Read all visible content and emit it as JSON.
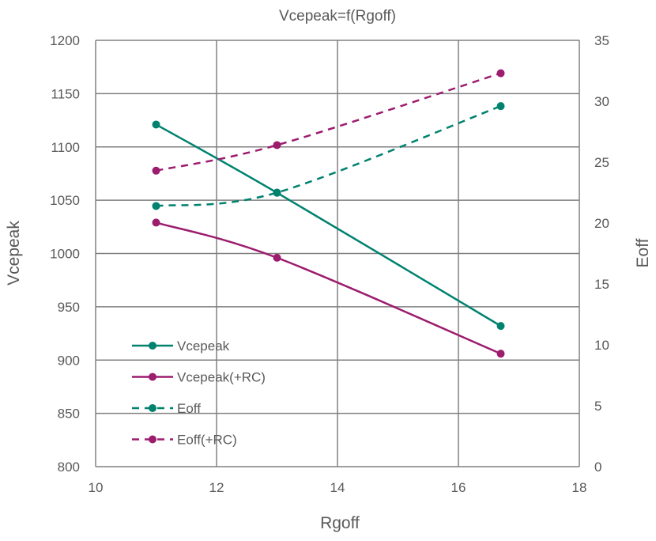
{
  "chart_data": {
    "type": "line",
    "title": "Vcepeak=f(Rgoff)",
    "xlabel": "Rgoff",
    "ylabel": "Vcepeak",
    "y2label": "Eoff",
    "xlim": [
      10,
      18
    ],
    "ylim": [
      800,
      1200
    ],
    "y2lim": [
      0,
      35
    ],
    "xticks": [
      "10",
      "12",
      "14",
      "16",
      "18"
    ],
    "yticks": [
      "800",
      "850",
      "900",
      "950",
      "1000",
      "1050",
      "1100",
      "1150",
      "1200"
    ],
    "y2ticks": [
      "0",
      "5",
      "10",
      "15",
      "20",
      "25",
      "30",
      "35"
    ],
    "grid": true,
    "legend_position": "bottom-left",
    "series": [
      {
        "name": "Vcepeak",
        "axis": "left",
        "style": "solid",
        "color": "#00826f",
        "x": [
          11,
          13,
          16.7
        ],
        "y": [
          1121,
          1057,
          932
        ]
      },
      {
        "name": "Vcepeak(+RC)",
        "axis": "left",
        "style": "solid",
        "color": "#9c1c6e",
        "x": [
          11,
          13,
          16.7
        ],
        "y": [
          1029,
          996,
          906
        ]
      },
      {
        "name": "Eoff",
        "axis": "right",
        "style": "dashed",
        "color": "#00826f",
        "x": [
          11,
          13,
          16.7
        ],
        "y": [
          21.4,
          22.5,
          29.6
        ]
      },
      {
        "name": "Eoff(+RC)",
        "axis": "right",
        "style": "dashed",
        "color": "#9c1c6e",
        "x": [
          11,
          13,
          16.7
        ],
        "y": [
          24.3,
          26.4,
          32.3
        ]
      }
    ]
  }
}
